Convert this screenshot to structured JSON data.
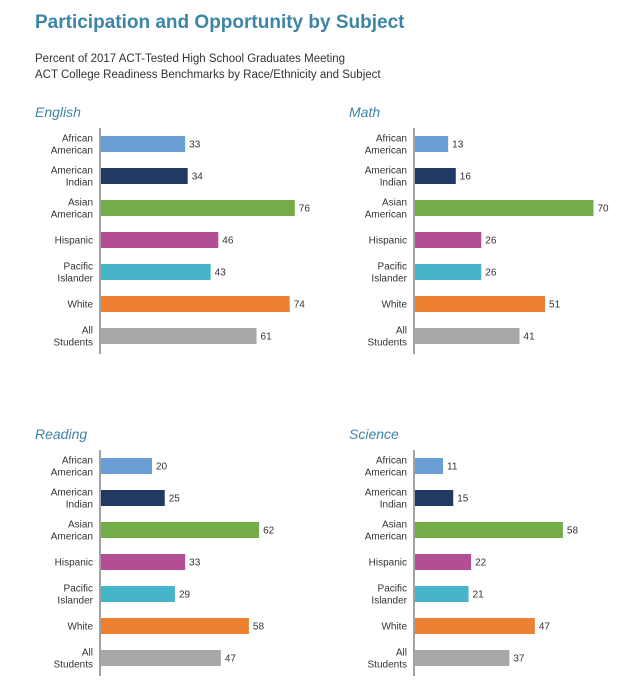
{
  "header": {
    "title": "Participation and Opportunity by Subject",
    "subtitle": "Percent of 2017 ACT-Tested High School Graduates Meeting\nACT College Readiness Benchmarks by Race/Ethnicity and Subject"
  },
  "colors": [
    "#6a9fd6",
    "#213a63",
    "#72ad48",
    "#b34e94",
    "#46b5c9",
    "#ed8132",
    "#a8a8a8"
  ],
  "chart_data": [
    {
      "type": "bar",
      "title": "English",
      "categories": [
        "African\nAmerican",
        "American\nIndian",
        "Asian\nAmerican",
        "Hispanic",
        "Pacific\nIslander",
        "White",
        "All\nStudents"
      ],
      "values": [
        33,
        34,
        76,
        46,
        43,
        74,
        61
      ],
      "xlim": [
        0,
        80
      ],
      "orientation": "horizontal",
      "grid": false
    },
    {
      "type": "bar",
      "title": "Math",
      "categories": [
        "African\nAmerican",
        "American\nIndian",
        "Asian\nAmerican",
        "Hispanic",
        "Pacific\nIslander",
        "White",
        "All\nStudents"
      ],
      "values": [
        13,
        16,
        70,
        26,
        26,
        51,
        41
      ],
      "xlim": [
        0,
        80
      ],
      "orientation": "horizontal",
      "grid": false
    },
    {
      "type": "bar",
      "title": "Reading",
      "categories": [
        "African\nAmerican",
        "American\nIndian",
        "Asian\nAmerican",
        "Hispanic",
        "Pacific\nIslander",
        "White",
        "All\nStudents"
      ],
      "values": [
        20,
        25,
        62,
        33,
        29,
        58,
        47
      ],
      "xlim": [
        0,
        80
      ],
      "orientation": "horizontal",
      "grid": false
    },
    {
      "type": "bar",
      "title": "Science",
      "categories": [
        "African\nAmerican",
        "American\nIndian",
        "Asian\nAmerican",
        "Hispanic",
        "Pacific\nIslander",
        "White",
        "All\nStudents"
      ],
      "values": [
        11,
        15,
        58,
        22,
        21,
        47,
        37
      ],
      "xlim": [
        0,
        80
      ],
      "orientation": "horizontal",
      "grid": false
    }
  ]
}
